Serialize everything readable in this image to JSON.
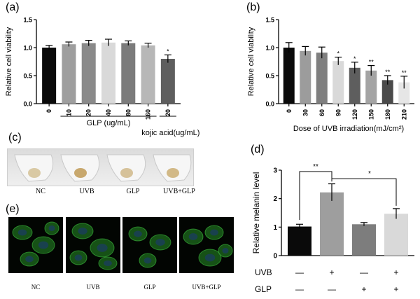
{
  "panel_labels": {
    "a": "(a)",
    "b": "(b)",
    "c": "(c)",
    "d": "(d)",
    "e": "(e)"
  },
  "chart_data": [
    {
      "panel": "(a)",
      "type": "bar",
      "ylabel": "Relative cell viability",
      "ylim": [
        0,
        1.5
      ],
      "yticks": [
        "0.0",
        "0.5",
        "1.0",
        "1.5"
      ],
      "categories": [
        "0",
        "10",
        "20",
        "40",
        "80",
        "160",
        "20"
      ],
      "values": [
        1.0,
        1.06,
        1.08,
        1.09,
        1.08,
        1.04,
        0.8
      ],
      "errors": [
        0.04,
        0.04,
        0.05,
        0.06,
        0.04,
        0.04,
        0.07
      ],
      "significance": [
        "",
        "",
        "",
        "",
        "",
        "",
        "*"
      ],
      "bar_colors": [
        "#0a0a0a",
        "#9e9e9e",
        "#8a8a8a",
        "#d9d9d9",
        "#7b7b7b",
        "#b7b7b7",
        "#5e5e5e"
      ],
      "group_labels": [
        "GLP (ug/mL)",
        "kojic acid(ug/mL)"
      ]
    },
    {
      "panel": "(b)",
      "type": "bar",
      "ylabel": "Relative cell viability",
      "xlabel": "Dose of UVB irradiation(mJ/cm²)",
      "ylim": [
        0,
        1.5
      ],
      "yticks": [
        "0.0",
        "0.5",
        "1.0",
        "1.5"
      ],
      "categories": [
        "0",
        "30",
        "60",
        "90",
        "120",
        "150",
        "180",
        "210"
      ],
      "values": [
        1.0,
        0.94,
        0.91,
        0.76,
        0.64,
        0.59,
        0.42,
        0.38
      ],
      "errors": [
        0.09,
        0.08,
        0.1,
        0.07,
        0.1,
        0.09,
        0.08,
        0.11
      ],
      "significance": [
        "",
        "",
        "",
        "*",
        "*",
        "**",
        "**",
        "**"
      ],
      "bar_colors": [
        "#0a0a0a",
        "#9c9c9c",
        "#7f7f7f",
        "#d9d9d9",
        "#5e5e5e",
        "#a4a4a4",
        "#4a4a4a",
        "#e6e6e6"
      ]
    },
    {
      "panel": "(d)",
      "type": "bar",
      "ylabel": "Relative melanin level",
      "ylim": [
        0,
        3
      ],
      "yticks": [
        "0",
        "1",
        "2",
        "3"
      ],
      "values": [
        1.02,
        2.22,
        1.1,
        1.47
      ],
      "errors": [
        0.08,
        0.3,
        0.06,
        0.18
      ],
      "bar_colors": [
        "#0a0a0a",
        "#9e9e9e",
        "#7d7d7d",
        "#d9d9d9"
      ],
      "row_labels": [
        "UVB",
        "GLP"
      ],
      "row_signs": [
        [
          "—",
          "+",
          "—",
          "+"
        ],
        [
          "—",
          "—",
          "+",
          "+"
        ]
      ],
      "brackets": [
        {
          "from": 0,
          "to": 1,
          "label": "**"
        },
        {
          "from": 1,
          "to": 3,
          "label": "*"
        }
      ]
    }
  ],
  "tube_labels": [
    "NC",
    "UVB",
    "GLP",
    "UVB+GLP"
  ],
  "image_labels": [
    "NC",
    "UVB",
    "GLP",
    "UVB+GLP"
  ]
}
